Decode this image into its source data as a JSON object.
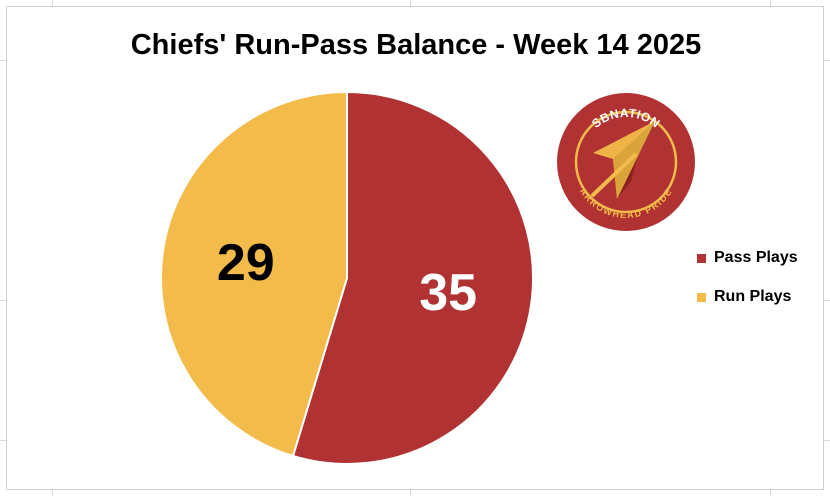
{
  "chart_data": {
    "type": "pie",
    "title": "Chiefs' Run-Pass Balance - Week 14 2025",
    "categories": [
      "Pass Plays",
      "Run Plays"
    ],
    "values": [
      35,
      29
    ],
    "data_labels": [
      "35",
      "29"
    ],
    "legend_placement": "right",
    "colors": [
      "#b03232",
      "#f2bb4a"
    ],
    "label_colors": [
      "#ffffff",
      "#000000"
    ]
  },
  "logo": {
    "top_text": "SBNATION",
    "bottom_text": "ARROWHEAD PRIDE"
  }
}
